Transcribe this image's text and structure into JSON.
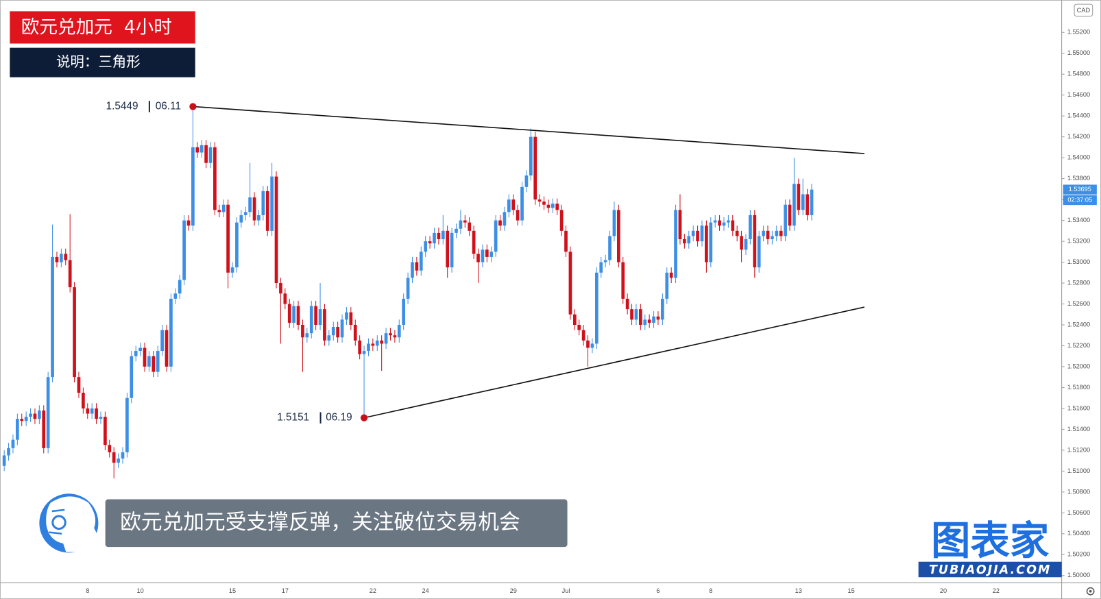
{
  "chart_data": {
    "type": "candlestick",
    "title": "欧元兑加元  4小时",
    "subtitle": "说明：三角形",
    "caption": "欧元兑加元受支撑反弹，关注破位交易机会",
    "logo": "图表家",
    "logo_url": "TUBIAOJIA.COM",
    "currency": "CAD",
    "countdown": "02:37:05",
    "up_color": "#3d8fe6",
    "down_color": "#d0101a",
    "categories": [
      null,
      null,
      null,
      null,
      null,
      null,
      null,
      null,
      null,
      null,
      null,
      null,
      null,
      null,
      null,
      null,
      null,
      null,
      null,
      "8",
      null,
      null,
      null,
      null,
      null,
      null,
      null,
      null,
      null,
      null,
      null,
      "10",
      null,
      null,
      null,
      null,
      null,
      null,
      null,
      null,
      null,
      null,
      null,
      null,
      null,
      null,
      null,
      null,
      null,
      null,
      null,
      null,
      "15",
      null,
      null,
      null,
      null,
      null,
      null,
      null,
      null,
      null,
      null,
      null,
      "17",
      null,
      null,
      null,
      null,
      null,
      null,
      null,
      null,
      null,
      null,
      null,
      null,
      null,
      null,
      null,
      null,
      null,
      null,
      null,
      "22",
      null,
      null,
      null,
      null,
      null,
      null,
      null,
      null,
      null,
      null,
      null,
      "24",
      null,
      null,
      null,
      null,
      null,
      null,
      null,
      null,
      null,
      null,
      null,
      null,
      null,
      null,
      null,
      null,
      null,
      null,
      null,
      "29",
      null,
      null,
      null,
      null,
      null,
      null,
      null,
      null,
      null,
      null,
      null,
      "Jul",
      null,
      null,
      null,
      null,
      null,
      null,
      null,
      null,
      null,
      null,
      null,
      null,
      null,
      null,
      null,
      null,
      null,
      null,
      null,
      null,
      "6",
      null,
      null,
      null,
      null,
      null,
      null,
      null,
      null,
      null,
      null,
      null,
      "8",
      null,
      null,
      null,
      null,
      null,
      null,
      null,
      null,
      null,
      null,
      null,
      null,
      null,
      null,
      null,
      null,
      null,
      null,
      null,
      "13",
      null,
      null,
      null,
      null,
      null,
      null,
      null,
      null,
      null,
      null,
      null,
      "15",
      null,
      null,
      null,
      null,
      null,
      null,
      null,
      null,
      null,
      null,
      null,
      null,
      null,
      null,
      null,
      null,
      null,
      null,
      null,
      null,
      "20",
      null,
      null,
      null,
      null,
      null,
      null,
      null,
      null,
      null,
      null,
      null,
      "22",
      null,
      null,
      null,
      null,
      null,
      null,
      null,
      null,
      null,
      null,
      null,
      null,
      null
    ],
    "open": [
      1.5105,
      1.5115,
      1.5122,
      1.513,
      1.515,
      1.5148,
      1.5152,
      1.5155,
      1.515,
      1.5158,
      1.5122,
      1.519,
      1.5305,
      1.53,
      1.5308,
      1.5302,
      1.5276,
      1.519,
      1.5175,
      1.516,
      1.5155,
      1.516,
      1.515,
      1.5152,
      1.5125,
      1.5118,
      1.5108,
      1.5112,
      1.5118,
      1.517,
      1.521,
      1.5215,
      1.5218,
      1.52,
      1.521,
      1.5195,
      1.5215,
      1.5235,
      1.52,
      1.5265,
      1.527,
      1.5283,
      1.534,
      1.5335,
      1.541,
      1.5405,
      1.5412,
      1.5395,
      1.541,
      1.535,
      1.5348,
      1.5355,
      1.529,
      1.5295,
      1.5338,
      1.5345,
      1.5348,
      1.5362,
      1.534,
      1.5345,
      1.5368,
      1.533,
      1.5382,
      1.528,
      1.527,
      1.526,
      1.5242,
      1.5258,
      1.524,
      1.5228,
      1.5232,
      1.5258,
      1.524,
      1.5255,
      1.5225,
      1.523,
      1.5238,
      1.5228,
      1.5245,
      1.5252,
      1.524,
      1.5225,
      1.5212,
      1.5215,
      1.5222,
      1.522,
      1.5225,
      1.5222,
      1.5232,
      1.523,
      1.5228,
      1.524,
      1.5265,
      1.5285,
      1.53,
      1.5292,
      1.531,
      1.532,
      1.5318,
      1.5328,
      1.5322,
      1.533,
      1.5295,
      1.5328,
      1.5332,
      1.534,
      1.5338,
      1.533,
      1.5308,
      1.53,
      1.5312,
      1.5305,
      1.531,
      1.534,
      1.5335,
      1.5348,
      1.536,
      1.535,
      1.534,
      1.5372,
      1.5383,
      1.542,
      1.536,
      1.5358,
      1.5355,
      1.5352,
      1.5356,
      1.535,
      1.533,
      1.531,
      1.525,
      1.524,
      1.5235,
      1.5225,
      1.5218,
      1.5222,
      1.529,
      1.53,
      1.5302,
      1.5325,
      1.535,
      1.53,
      1.5265,
      1.5255,
      1.5245,
      1.5255,
      1.524,
      1.5245,
      1.5242,
      1.5248,
      1.5245,
      1.5265,
      1.529,
      1.5285,
      1.535,
      1.5322,
      1.5318,
      1.5325,
      1.533,
      1.532,
      1.5335,
      1.53,
      1.5338,
      1.534,
      1.5335,
      1.5338,
      1.534,
      1.533,
      1.5325,
      1.5312,
      1.5322,
      1.5345,
      1.5295,
      1.5325,
      1.533,
      1.5322,
      1.5325,
      1.533,
      1.5325,
      1.5355,
      1.5335,
      1.5375,
      1.535,
      1.5365,
      1.5345,
      null,
      null,
      null,
      null,
      null,
      null,
      null,
      null,
      null,
      null,
      null,
      null,
      null,
      null,
      null,
      null,
      null,
      null,
      null,
      null,
      null,
      null,
      null,
      null,
      null,
      null,
      null,
      null,
      null,
      null,
      null,
      null,
      null,
      null,
      null,
      null,
      null,
      null,
      null,
      null,
      null,
      null,
      null,
      null,
      null,
      null,
      null,
      null,
      null,
      null,
      null,
      null,
      null,
      null,
      null
    ],
    "high": [
      1.512,
      1.5127,
      1.5135,
      1.5155,
      1.5155,
      1.5157,
      1.516,
      1.516,
      1.5163,
      1.5163,
      1.5195,
      1.5336,
      1.531,
      1.5313,
      1.5313,
      1.5346,
      1.5281,
      1.5195,
      1.518,
      1.5165,
      1.5165,
      1.5165,
      1.5157,
      1.5157,
      1.513,
      1.5123,
      1.5117,
      1.5123,
      1.5175,
      1.5215,
      1.522,
      1.5223,
      1.5223,
      1.5215,
      1.5215,
      1.522,
      1.524,
      1.524,
      1.527,
      1.5275,
      1.5288,
      1.5345,
      1.5345,
      1.5449,
      1.5415,
      1.5417,
      1.5417,
      1.5415,
      1.5415,
      1.5355,
      1.536,
      1.536,
      1.53,
      1.5343,
      1.535,
      1.5353,
      1.5395,
      1.5367,
      1.535,
      1.5373,
      1.5373,
      1.5395,
      1.5387,
      1.5285,
      1.5275,
      1.5265,
      1.5263,
      1.5263,
      1.5245,
      1.5237,
      1.5263,
      1.5263,
      1.528,
      1.526,
      1.5235,
      1.5243,
      1.5243,
      1.525,
      1.5257,
      1.5257,
      1.5245,
      1.523,
      1.522,
      1.5227,
      1.5227,
      1.523,
      1.523,
      1.5237,
      1.5237,
      1.5235,
      1.5245,
      1.527,
      1.529,
      1.5305,
      1.5305,
      1.5315,
      1.5325,
      1.5325,
      1.5333,
      1.5333,
      1.5345,
      1.5335,
      1.5333,
      1.5337,
      1.535,
      1.5345,
      1.5343,
      1.5335,
      1.5313,
      1.5317,
      1.5317,
      1.5315,
      1.5345,
      1.5345,
      1.5353,
      1.5365,
      1.5365,
      1.5355,
      1.5377,
      1.5388,
      1.5428,
      1.5425,
      1.5365,
      1.5363,
      1.536,
      1.5361,
      1.5361,
      1.5355,
      1.5335,
      1.5315,
      1.5255,
      1.5245,
      1.524,
      1.523,
      1.5227,
      1.5295,
      1.5305,
      1.5307,
      1.533,
      1.5358,
      1.5355,
      1.5305,
      1.527,
      1.526,
      1.526,
      1.526,
      1.525,
      1.525,
      1.5253,
      1.5253,
      1.527,
      1.5295,
      1.5295,
      1.5355,
      1.5365,
      1.5327,
      1.533,
      1.5335,
      1.5335,
      1.534,
      1.534,
      1.5343,
      1.5345,
      1.5345,
      1.5343,
      1.5345,
      1.5345,
      1.5335,
      1.533,
      1.5327,
      1.535,
      1.535,
      1.533,
      1.5335,
      1.5335,
      1.533,
      1.5335,
      1.5335,
      1.536,
      1.536,
      1.54,
      1.538,
      1.538,
      1.537,
      1.5375,
      null,
      null,
      null,
      null,
      null,
      null,
      null,
      null,
      null,
      null,
      null,
      null,
      null,
      null,
      null,
      null,
      null,
      null,
      null,
      null,
      null,
      null,
      null,
      null,
      null,
      null,
      null,
      null,
      null,
      null,
      null,
      null,
      null,
      null,
      null,
      null,
      null,
      null,
      null,
      null,
      null,
      null,
      null,
      null,
      null,
      null,
      null,
      null,
      null,
      null,
      null,
      null,
      null,
      null,
      null
    ],
    "low": [
      1.51,
      1.511,
      1.5117,
      1.5125,
      1.5143,
      1.5143,
      1.5147,
      1.5145,
      1.5145,
      1.5117,
      1.5117,
      1.5185,
      1.5295,
      1.5295,
      1.5297,
      1.5271,
      1.5185,
      1.517,
      1.5155,
      1.515,
      1.515,
      1.5145,
      1.5145,
      1.512,
      1.5113,
      1.5093,
      1.5103,
      1.5107,
      1.5113,
      1.5165,
      1.5205,
      1.521,
      1.5195,
      1.5195,
      1.519,
      1.519,
      1.521,
      1.5195,
      1.5195,
      1.526,
      1.5265,
      1.5278,
      1.533,
      1.533,
      1.54,
      1.54,
      1.539,
      1.539,
      1.5345,
      1.5343,
      1.5343,
      1.5275,
      1.5285,
      1.529,
      1.5333,
      1.534,
      1.5343,
      1.5335,
      1.5335,
      1.534,
      1.5325,
      1.5325,
      1.5275,
      1.5222,
      1.5255,
      1.5237,
      1.5237,
      1.5235,
      1.5195,
      1.5223,
      1.5227,
      1.5235,
      1.5235,
      1.522,
      1.522,
      1.5225,
      1.5223,
      1.5223,
      1.524,
      1.5235,
      1.522,
      1.5207,
      1.5151,
      1.521,
      1.5215,
      1.5215,
      1.5196,
      1.5217,
      1.5225,
      1.5223,
      1.5223,
      1.5235,
      1.526,
      1.528,
      1.5287,
      1.5287,
      1.5305,
      1.5313,
      1.5313,
      1.5317,
      1.5317,
      1.5285,
      1.529,
      1.5323,
      1.5327,
      1.5333,
      1.5325,
      1.5303,
      1.528,
      1.5295,
      1.53,
      1.53,
      1.5305,
      1.533,
      1.533,
      1.5343,
      1.5345,
      1.5335,
      1.5335,
      1.5367,
      1.5378,
      1.5355,
      1.5353,
      1.535,
      1.5347,
      1.5347,
      1.5345,
      1.5325,
      1.5305,
      1.5245,
      1.5235,
      1.523,
      1.522,
      1.52,
      1.5213,
      1.5217,
      1.5285,
      1.5295,
      1.5297,
      1.532,
      1.5295,
      1.526,
      1.525,
      1.524,
      1.524,
      1.5235,
      1.5235,
      1.5237,
      1.5237,
      1.524,
      1.524,
      1.526,
      1.528,
      1.528,
      1.5317,
      1.5313,
      1.5313,
      1.532,
      1.5315,
      1.5315,
      1.529,
      1.5295,
      1.5333,
      1.533,
      1.533,
      1.5333,
      1.5325,
      1.532,
      1.53,
      1.5307,
      1.5317,
      1.5285,
      1.529,
      1.532,
      1.5317,
      1.5317,
      1.532,
      1.532,
      1.532,
      1.533,
      1.533,
      1.5345,
      1.5345,
      1.534,
      1.534,
      null,
      null,
      null,
      null,
      null,
      null,
      null,
      null,
      null,
      null,
      null,
      null,
      null,
      null,
      null,
      null,
      null,
      null,
      null,
      null,
      null,
      null,
      null,
      null,
      null,
      null,
      null,
      null,
      null,
      null,
      null,
      null,
      null,
      null,
      null,
      null,
      null,
      null,
      null,
      null,
      null,
      null,
      null,
      null,
      null,
      null,
      null,
      null,
      null,
      null,
      null,
      null,
      null,
      null,
      null
    ],
    "close": [
      1.5115,
      1.5122,
      1.513,
      1.515,
      1.5148,
      1.5152,
      1.5155,
      1.515,
      1.5158,
      1.5122,
      1.519,
      1.5305,
      1.53,
      1.5308,
      1.5302,
      1.5276,
      1.519,
      1.5175,
      1.516,
      1.5155,
      1.516,
      1.515,
      1.5152,
      1.5125,
      1.5118,
      1.5108,
      1.5112,
      1.5118,
      1.517,
      1.521,
      1.5215,
      1.5218,
      1.52,
      1.521,
      1.5195,
      1.5215,
      1.5235,
      1.52,
      1.5265,
      1.527,
      1.5283,
      1.534,
      1.5335,
      1.541,
      1.5405,
      1.5412,
      1.5395,
      1.541,
      1.535,
      1.5348,
      1.5355,
      1.529,
      1.5295,
      1.5338,
      1.5345,
      1.5348,
      1.5362,
      1.534,
      1.5345,
      1.5368,
      1.533,
      1.5382,
      1.528,
      1.527,
      1.526,
      1.5242,
      1.5258,
      1.524,
      1.5228,
      1.5232,
      1.5258,
      1.524,
      1.5255,
      1.5225,
      1.523,
      1.5238,
      1.5228,
      1.5245,
      1.5252,
      1.524,
      1.5225,
      1.5212,
      1.5215,
      1.5222,
      1.522,
      1.5225,
      1.5222,
      1.5232,
      1.523,
      1.5228,
      1.524,
      1.5265,
      1.5285,
      1.53,
      1.5292,
      1.531,
      1.532,
      1.5318,
      1.5328,
      1.5322,
      1.533,
      1.5295,
      1.5328,
      1.5332,
      1.534,
      1.5338,
      1.533,
      1.5308,
      1.53,
      1.5312,
      1.5305,
      1.531,
      1.534,
      1.5335,
      1.5348,
      1.536,
      1.535,
      1.534,
      1.5372,
      1.5383,
      1.542,
      1.536,
      1.5358,
      1.5355,
      1.5352,
      1.5356,
      1.535,
      1.533,
      1.531,
      1.525,
      1.524,
      1.5235,
      1.5225,
      1.5218,
      1.5222,
      1.529,
      1.53,
      1.5302,
      1.5325,
      1.535,
      1.53,
      1.5265,
      1.5255,
      1.5245,
      1.5255,
      1.524,
      1.5245,
      1.5242,
      1.5248,
      1.5245,
      1.5265,
      1.529,
      1.5285,
      1.535,
      1.5322,
      1.5318,
      1.5325,
      1.533,
      1.532,
      1.5335,
      1.53,
      1.5338,
      1.534,
      1.5335,
      1.5338,
      1.534,
      1.533,
      1.5325,
      1.5312,
      1.5322,
      1.5345,
      1.5295,
      1.5325,
      1.533,
      1.5322,
      1.5325,
      1.533,
      1.5325,
      1.5355,
      1.5335,
      1.5375,
      1.535,
      1.5365,
      1.5345,
      1.53695,
      null,
      null,
      null,
      null,
      null,
      null,
      null,
      null,
      null,
      null,
      null,
      null,
      null,
      null,
      null,
      null,
      null,
      null,
      null,
      null,
      null,
      null,
      null,
      null,
      null,
      null,
      null,
      null,
      null,
      null,
      null,
      null,
      null,
      null,
      null,
      null,
      null,
      null,
      null,
      null,
      null,
      null,
      null,
      null,
      null,
      null,
      null,
      null,
      null,
      null,
      null,
      null,
      null,
      null,
      null
    ],
    "ylim": [
      1.4993,
      1.5551
    ],
    "yticks": [
      {
        "value": 1.5,
        "label": "1.50000"
      },
      {
        "value": 1.502,
        "label": "1.50200"
      },
      {
        "value": 1.504,
        "label": "1.50400"
      },
      {
        "value": 1.506,
        "label": "1.50600"
      },
      {
        "value": 1.508,
        "label": "1.50800"
      },
      {
        "value": 1.51,
        "label": "1.51000"
      },
      {
        "value": 1.512,
        "label": "1.51200"
      },
      {
        "value": 1.514,
        "label": "1.51400"
      },
      {
        "value": 1.516,
        "label": "1.51600"
      },
      {
        "value": 1.518,
        "label": "1.51800"
      },
      {
        "value": 1.52,
        "label": "1.52000"
      },
      {
        "value": 1.522,
        "label": "1.52200"
      },
      {
        "value": 1.524,
        "label": "1.52400"
      },
      {
        "value": 1.526,
        "label": "1.52600"
      },
      {
        "value": 1.528,
        "label": "1.52800"
      },
      {
        "value": 1.53,
        "label": "1.53000"
      },
      {
        "value": 1.532,
        "label": "1.53200"
      },
      {
        "value": 1.534,
        "label": "1.53400"
      },
      {
        "value": 1.536,
        "label": "1.53600"
      },
      {
        "value": 1.538,
        "label": "1.53800"
      },
      {
        "value": 1.54,
        "label": "1.54000"
      },
      {
        "value": 1.542,
        "label": "1.54200"
      },
      {
        "value": 1.544,
        "label": "1.54400"
      },
      {
        "value": 1.546,
        "label": "1.54600"
      },
      {
        "value": 1.548,
        "label": "1.54800"
      },
      {
        "value": 1.55,
        "label": "1.55000"
      },
      {
        "value": 1.552,
        "label": "1.55200"
      }
    ],
    "annotations": [
      {
        "index": 43,
        "value": 1.5449,
        "date": "06.11"
      },
      {
        "index": 82,
        "value": 1.5151,
        "date": "06.19"
      }
    ],
    "trendlines": [
      {
        "start_index": 43,
        "start": 1.5449,
        "end_index": 196,
        "end": 1.5404
      },
      {
        "start_index": 82,
        "start": 1.5151,
        "end_index": 196,
        "end": 1.5257
      }
    ]
  }
}
